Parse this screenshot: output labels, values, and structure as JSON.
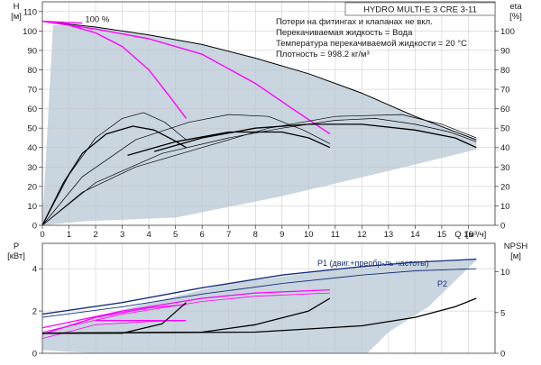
{
  "chart_data": [
    {
      "type": "line",
      "id": "qh",
      "title": "HYDRO MULTI-E 3 CRE 3-11",
      "notes": [
        "Потери на фитингах и клапанах не вкл.",
        "Перекачиваемая жидкость = Вода",
        "Температура перекачиваемой жидкости = 20 °C",
        "Плотность = 998.2 кг/м³"
      ],
      "ylabel": "H",
      "yunit": "[м]",
      "y2label": "eta",
      "y2unit": "[%]",
      "xlabel": "Q",
      "xunit": "[м³/ч]",
      "xlim": [
        0,
        17
      ],
      "ylim": [
        0,
        115
      ],
      "y2lim": [
        0,
        115
      ],
      "xticks": [
        "0",
        "1",
        "2",
        "3",
        "4",
        "5",
        "6",
        "7",
        "8",
        "9",
        "10",
        "11",
        "12",
        "13",
        "14",
        "15",
        "16"
      ],
      "yticks": [
        "0",
        "10",
        "20",
        "30",
        "40",
        "50",
        "60",
        "70",
        "80",
        "90",
        "100",
        "110"
      ],
      "y2ticks": [
        "0",
        "10",
        "20",
        "30",
        "40",
        "50",
        "60",
        "70",
        "80",
        "90",
        "100"
      ],
      "grid": true,
      "annotations": [
        {
          "text": "100 %",
          "x": 1.4,
          "y": 106
        }
      ],
      "region_color": "#c9d5df",
      "series": [
        {
          "color": "#000000",
          "width": 1,
          "points": [
            [
              0,
              105
            ],
            [
              2,
              102
            ],
            [
              4,
              98
            ],
            [
              6,
              93
            ],
            [
              8,
              86
            ],
            [
              10,
              78
            ],
            [
              12,
              68
            ],
            [
              14,
              56
            ],
            [
              16.3,
              44
            ]
          ]
        },
        {
          "color": "#ff00ff",
          "width": 1.4,
          "points": [
            [
              0,
              105
            ],
            [
              1,
              103
            ],
            [
              2,
              99
            ],
            [
              3,
              92
            ],
            [
              4,
              80
            ],
            [
              4.8,
              66
            ],
            [
              5.4,
              55
            ]
          ]
        },
        {
          "color": "#ff00ff",
          "width": 1.4,
          "points": [
            [
              0,
              105
            ],
            [
              2,
              101
            ],
            [
              4,
              96
            ],
            [
              6,
              88
            ],
            [
              8,
              73
            ],
            [
              9.5,
              59
            ],
            [
              10.8,
              47
            ]
          ]
        },
        {
          "color": "#ff00ff",
          "width": 1.4,
          "points": [
            [
              0,
              105
            ],
            [
              1.5,
              104
            ]
          ]
        },
        {
          "color": "#000000",
          "width": 1.3,
          "points": [
            [
              0,
              0
            ],
            [
              0.8,
              22
            ],
            [
              1.5,
              37
            ],
            [
              2.4,
              47
            ],
            [
              3.4,
              51
            ],
            [
              4.2,
              49
            ],
            [
              4.9,
              44
            ],
            [
              5.4,
              40
            ]
          ]
        },
        {
          "color": "#000000",
          "width": 1.3,
          "points": [
            [
              3.2,
              36
            ],
            [
              5,
              43
            ],
            [
              7,
              48
            ],
            [
              9,
              48
            ],
            [
              10,
              45
            ],
            [
              10.8,
              40
            ]
          ]
        },
        {
          "color": "#000000",
          "width": 1.3,
          "points": [
            [
              4.2,
              38
            ],
            [
              6,
              45
            ],
            [
              8,
              50
            ],
            [
              10,
              52
            ],
            [
              12,
              52
            ],
            [
              14,
              49
            ],
            [
              15.5,
              45
            ],
            [
              16.3,
              40
            ]
          ]
        },
        {
          "color": "#000000",
          "width": 0.7,
          "points": [
            [
              0,
              0
            ],
            [
              1,
              26
            ],
            [
              2,
              45
            ],
            [
              3,
              55
            ],
            [
              3.8,
              58
            ],
            [
              4.6,
              53
            ],
            [
              5.4,
              44
            ]
          ]
        },
        {
          "color": "#000000",
          "width": 0.7,
          "points": [
            [
              0,
              0
            ],
            [
              1.5,
              25
            ],
            [
              3.5,
              44
            ],
            [
              5.5,
              53
            ],
            [
              7,
              57
            ],
            [
              8.5,
              56
            ],
            [
              9.8,
              49
            ],
            [
              10.8,
              42
            ]
          ]
        },
        {
          "color": "#000000",
          "width": 0.7,
          "points": [
            [
              0,
              0
            ],
            [
              2,
              22
            ],
            [
              4.5,
              37
            ],
            [
              7,
              45
            ],
            [
              9,
              50
            ],
            [
              11,
              54
            ],
            [
              12.5,
              55
            ],
            [
              14,
              52
            ],
            [
              15.3,
              48
            ],
            [
              16.3,
              43
            ]
          ]
        },
        {
          "color": "#000000",
          "width": 0.7,
          "points": [
            [
              0,
              0
            ],
            [
              1.5,
              17
            ],
            [
              3.5,
              30
            ],
            [
              6,
              40
            ],
            [
              8.5,
              50
            ],
            [
              11,
              56
            ],
            [
              13.5,
              57
            ],
            [
              15,
              52
            ],
            [
              16.3,
              45
            ]
          ]
        }
      ]
    },
    {
      "type": "line",
      "id": "p-npsh",
      "ylabel": "P",
      "yunit": "[кВт]",
      "y2label": "NPSH",
      "y2unit": "[м]",
      "xlim": [
        0,
        17
      ],
      "ylim": [
        0,
        5.2
      ],
      "y2lim": [
        0,
        13.5
      ],
      "yticks": [
        "0",
        "2",
        "4"
      ],
      "y2ticks": [
        "0",
        "5",
        "10"
      ],
      "grid": true,
      "region_color": "#c9d5df",
      "series": [
        {
          "name": "P1 (двиг.+преобр-ль частоты)",
          "color": "#14307a",
          "width": 1.4,
          "points": [
            [
              0,
              1.85
            ],
            [
              3,
              2.4
            ],
            [
              6,
              3.1
            ],
            [
              9,
              3.7
            ],
            [
              12,
              4.1
            ],
            [
              14,
              4.3
            ],
            [
              16.3,
              4.45
            ]
          ]
        },
        {
          "name": "P2",
          "color": "#14307a",
          "width": 0.9,
          "points": [
            [
              0,
              1.7
            ],
            [
              3,
              2.2
            ],
            [
              6,
              2.8
            ],
            [
              9,
              3.3
            ],
            [
              12,
              3.7
            ],
            [
              14,
              3.9
            ],
            [
              16.3,
              4.0
            ]
          ]
        },
        {
          "color": "#ff00ff",
          "width": 1.3,
          "points": [
            [
              0,
              0.9
            ],
            [
              2,
              1.7
            ],
            [
              4,
              2.15
            ],
            [
              5.4,
              2.3
            ]
          ]
        },
        {
          "color": "#ff00ff",
          "width": 1.3,
          "points": [
            [
              0,
              1.2
            ],
            [
              3,
              2.0
            ],
            [
              6,
              2.6
            ],
            [
              8,
              2.85
            ],
            [
              10.8,
              3.0
            ]
          ]
        },
        {
          "color": "#ff00ff",
          "width": 0.8,
          "points": [
            [
              0,
              1.0
            ],
            [
              3,
              1.85
            ],
            [
              6,
              2.45
            ],
            [
              8,
              2.7
            ],
            [
              10.8,
              2.85
            ]
          ]
        },
        {
          "color": "#ff00ff",
          "width": 0.8,
          "points": [
            [
              0,
              0.7
            ],
            [
              2,
              1.35
            ],
            [
              4,
              1.5
            ],
            [
              5.4,
              1.55
            ]
          ]
        },
        {
          "color": "#ff00ff",
          "width": 1.3,
          "points": [
            [
              2,
              1.55
            ],
            [
              5.4,
              1.55
            ]
          ]
        },
        {
          "color": "#000000",
          "width": 1.3,
          "points": [
            [
              0,
              0.95
            ],
            [
              3,
              0.95
            ],
            [
              4.5,
              1.4
            ],
            [
              5.4,
              2.4
            ]
          ]
        },
        {
          "color": "#000000",
          "width": 1.3,
          "points": [
            [
              0,
              0.95
            ],
            [
              6,
              1.0
            ],
            [
              8,
              1.35
            ],
            [
              10,
              2.0
            ],
            [
              10.8,
              2.6
            ]
          ]
        },
        {
          "color": "#000000",
          "width": 1.3,
          "points": [
            [
              0,
              0.95
            ],
            [
              8,
              1.0
            ],
            [
              12,
              1.3
            ],
            [
              14,
              1.7
            ],
            [
              15.5,
              2.2
            ],
            [
              16.3,
              2.6
            ]
          ]
        }
      ]
    }
  ]
}
